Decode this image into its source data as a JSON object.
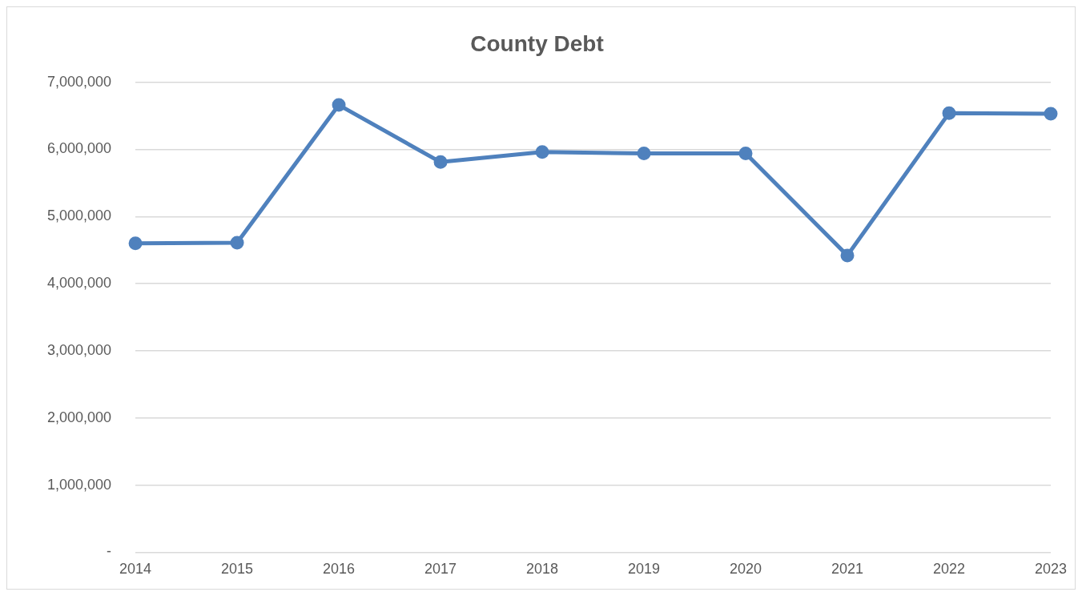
{
  "chart_data": {
    "type": "line",
    "title": "County Debt",
    "categories": [
      "2014",
      "2015",
      "2016",
      "2017",
      "2018",
      "2019",
      "2020",
      "2021",
      "2022",
      "2023"
    ],
    "series": [
      {
        "color": "#4f81bd",
        "values": [
          4600000,
          4610000,
          6660000,
          5810000,
          5960000,
          5940000,
          5940000,
          4420000,
          6540000,
          6530000
        ]
      }
    ],
    "ylim": [
      0,
      7000000
    ],
    "yticks": [
      {
        "value": 0,
        "label": "-"
      },
      {
        "value": 1000000,
        "label": "1,000,000"
      },
      {
        "value": 2000000,
        "label": "2,000,000"
      },
      {
        "value": 3000000,
        "label": "3,000,000"
      },
      {
        "value": 4000000,
        "label": "4,000,000"
      },
      {
        "value": 5000000,
        "label": "5,000,000"
      },
      {
        "value": 6000000,
        "label": "6,000,000"
      },
      {
        "value": 7000000,
        "label": "7,000,000"
      }
    ],
    "grid": "y",
    "legend": false,
    "marker": "circle",
    "line_style": "solid"
  }
}
